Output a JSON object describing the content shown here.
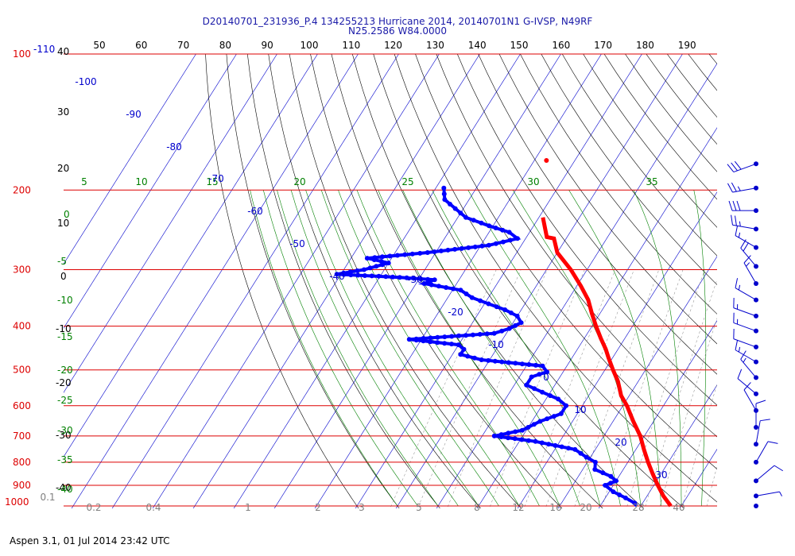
{
  "title_line1": "D20140701_231936_P.4 134255213 Hurricane 2014, 20140701N1 G-IVSP, N49RF",
  "title_line2": "N25.2586 W84.0000",
  "footer": "Aspen 3.1, 01 Jul 2014  23:42 UTC",
  "colors": {
    "isobar": "#dd0000",
    "isotherm": "#0000cc",
    "dry_adiabat": "#000000",
    "moist_adiabat": "#008000",
    "mixing_ratio": "#808080",
    "temperature": "#ff0000",
    "dewpoint": "#0000ff",
    "wind_barb": "#0000cc"
  },
  "chart_data": {
    "type": "scatter",
    "pressure_levels_hpa": [
      "100",
      "200",
      "300",
      "400",
      "500",
      "600",
      "700",
      "800",
      "900",
      "1000"
    ],
    "pressure_label_extra": "-110",
    "top_tick_labels": [
      "50",
      "60",
      "70",
      "80",
      "90",
      "100",
      "110",
      "120",
      "130",
      "140",
      "150",
      "160",
      "170",
      "180",
      "190"
    ],
    "left_black_labels": [
      "40",
      "30",
      "20",
      "10",
      "0",
      "-10",
      "-20",
      "-30",
      "-40"
    ],
    "left_green_labels": [
      "5",
      "0",
      "-5",
      "-10",
      "-15",
      "-20",
      "-25",
      "-30",
      "-35",
      "-40"
    ],
    "top_green_labels": [
      "5",
      "10",
      "15",
      "20",
      "25",
      "30",
      "35"
    ],
    "isotherm_labels": [
      "-100",
      "-90",
      "-80",
      "-70",
      "-60",
      "-50",
      "-40",
      "-30",
      "-20",
      "-10",
      "0",
      "10",
      "20",
      "30"
    ],
    "mixing_ratio_labels": [
      "0.1",
      "0.2",
      "0.4",
      "1",
      "2",
      "3",
      "5",
      "8",
      "12",
      "16",
      "20",
      "28",
      "40"
    ],
    "temperature": [
      {
        "p": 230,
        "t": -49
      },
      {
        "p": 254,
        "t": -45
      },
      {
        "p": 256,
        "t": -43
      },
      {
        "p": 275,
        "t": -40
      },
      {
        "p": 300,
        "t": -34
      },
      {
        "p": 326,
        "t": -29
      },
      {
        "p": 350,
        "t": -25
      },
      {
        "p": 375,
        "t": -22
      },
      {
        "p": 400,
        "t": -19
      },
      {
        "p": 425,
        "t": -16
      },
      {
        "p": 450,
        "t": -13
      },
      {
        "p": 470,
        "t": -11
      },
      {
        "p": 500,
        "t": -8
      },
      {
        "p": 530,
        "t": -5
      },
      {
        "p": 570,
        "t": -2
      },
      {
        "p": 600,
        "t": 1
      },
      {
        "p": 650,
        "t": 5
      },
      {
        "p": 700,
        "t": 9
      },
      {
        "p": 750,
        "t": 12
      },
      {
        "p": 800,
        "t": 15
      },
      {
        "p": 850,
        "t": 18
      },
      {
        "p": 900,
        "t": 21
      },
      {
        "p": 950,
        "t": 24
      },
      {
        "p": 1000,
        "t": 27.4
      }
    ],
    "dewpoint": [
      {
        "p": 198,
        "t": -78
      },
      {
        "p": 210,
        "t": -76
      },
      {
        "p": 230,
        "t": -68
      },
      {
        "p": 240,
        "t": -61
      },
      {
        "p": 248,
        "t": -55
      },
      {
        "p": 256,
        "t": -52
      },
      {
        "p": 265,
        "t": -58
      },
      {
        "p": 275,
        "t": -72
      },
      {
        "p": 283,
        "t": -86
      },
      {
        "p": 290,
        "t": -80
      },
      {
        "p": 300,
        "t": -85
      },
      {
        "p": 307,
        "t": -91
      },
      {
        "p": 312,
        "t": -75
      },
      {
        "p": 316,
        "t": -66
      },
      {
        "p": 322,
        "t": -68
      },
      {
        "p": 333,
        "t": -58
      },
      {
        "p": 346,
        "t": -54
      },
      {
        "p": 357,
        "t": -49
      },
      {
        "p": 368,
        "t": -44
      },
      {
        "p": 380,
        "t": -40
      },
      {
        "p": 393,
        "t": -38
      },
      {
        "p": 405,
        "t": -40
      },
      {
        "p": 415,
        "t": -43
      },
      {
        "p": 428,
        "t": -63
      },
      {
        "p": 440,
        "t": -50
      },
      {
        "p": 450,
        "t": -48
      },
      {
        "p": 462,
        "t": -48
      },
      {
        "p": 475,
        "t": -42
      },
      {
        "p": 490,
        "t": -26
      },
      {
        "p": 505,
        "t": -24
      },
      {
        "p": 518,
        "t": -27
      },
      {
        "p": 540,
        "t": -27
      },
      {
        "p": 560,
        "t": -22
      },
      {
        "p": 580,
        "t": -17
      },
      {
        "p": 600,
        "t": -14
      },
      {
        "p": 625,
        "t": -14
      },
      {
        "p": 650,
        "t": -18
      },
      {
        "p": 680,
        "t": -21
      },
      {
        "p": 700,
        "t": -27
      },
      {
        "p": 720,
        "t": -16
      },
      {
        "p": 750,
        "t": -5
      },
      {
        "p": 780,
        "t": -1
      },
      {
        "p": 800,
        "t": 2
      },
      {
        "p": 830,
        "t": 3
      },
      {
        "p": 860,
        "t": 8
      },
      {
        "p": 880,
        "t": 10
      },
      {
        "p": 900,
        "t": 8
      },
      {
        "p": 930,
        "t": 11
      },
      {
        "p": 960,
        "t": 15
      },
      {
        "p": 985,
        "t": 18
      },
      {
        "p": 1000,
        "t": 19
      }
    ],
    "isolated_point": {
      "p": 172,
      "t": -57
    },
    "wind_barbs": [
      {
        "p": 175,
        "dir": 250,
        "spd": 30
      },
      {
        "p": 198,
        "dir": 260,
        "spd": 25
      },
      {
        "p": 222,
        "dir": 270,
        "spd": 30
      },
      {
        "p": 244,
        "dir": 280,
        "spd": 25
      },
      {
        "p": 268,
        "dir": 300,
        "spd": 15
      },
      {
        "p": 295,
        "dir": 320,
        "spd": 20
      },
      {
        "p": 322,
        "dir": 330,
        "spd": 15
      },
      {
        "p": 350,
        "dir": 300,
        "spd": 15
      },
      {
        "p": 380,
        "dir": 290,
        "spd": 15
      },
      {
        "p": 410,
        "dir": 290,
        "spd": 15
      },
      {
        "p": 445,
        "dir": 290,
        "spd": 10
      },
      {
        "p": 480,
        "dir": 300,
        "spd": 15
      },
      {
        "p": 520,
        "dir": 320,
        "spd": 15
      },
      {
        "p": 565,
        "dir": 310,
        "spd": 10
      },
      {
        "p": 615,
        "dir": 330,
        "spd": 10
      },
      {
        "p": 670,
        "dir": 0,
        "spd": 10
      },
      {
        "p": 730,
        "dir": 10,
        "spd": 10
      },
      {
        "p": 800,
        "dir": 30,
        "spd": 10
      },
      {
        "p": 880,
        "dir": 50,
        "spd": 10
      },
      {
        "p": 950,
        "dir": 80,
        "spd": 5
      },
      {
        "p": 1000,
        "dir": 0,
        "spd": 0
      }
    ]
  }
}
